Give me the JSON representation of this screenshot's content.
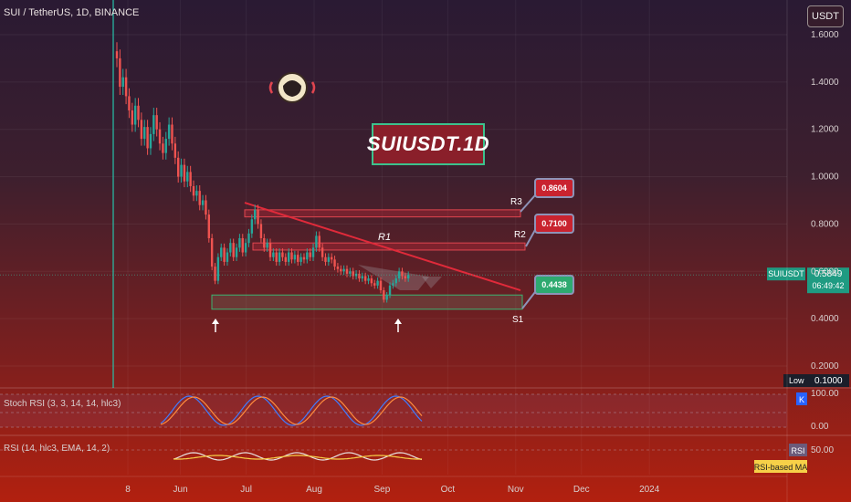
{
  "header": {
    "symbol_line": "SUI / TetherUS, 1D, BINANCE",
    "currency": "USDT"
  },
  "title_box": "SUIUSDT.1D",
  "price_axis": {
    "ticks": [
      "1.6000",
      "1.4000",
      "1.2000",
      "1.0000",
      "0.8000",
      "0.6000",
      "0.4000",
      "0.2000"
    ]
  },
  "time_axis": {
    "ticks": [
      "8",
      "Jun",
      "Jul",
      "Aug",
      "Sep",
      "Oct",
      "Nov",
      "Dec",
      "2024"
    ]
  },
  "price_badge": {
    "symbol": "SUIUSDT",
    "price": "0.5849",
    "countdown": "06:49:42"
  },
  "low_badge": {
    "label": "Low",
    "value": "0.1000"
  },
  "levels": [
    {
      "name": "R3",
      "value": "0.8604",
      "color": "#d62b38"
    },
    {
      "name": "R2",
      "value": "0.7100",
      "color": "#d62b38"
    },
    {
      "name": "R1",
      "value": "",
      "color": "#d62b38"
    },
    {
      "name": "S1",
      "value": "0.4438",
      "color": "#3cb371"
    }
  ],
  "stoch_rsi": {
    "title": "Stoch RSI (3, 3, 14, 14, hlc3)",
    "tick_top": "100.00",
    "tick_bottom": "0.00",
    "badge": "K"
  },
  "rsi": {
    "title": "RSI (14, hlc3, EMA, 14, 2)",
    "tick": "50.00",
    "badge": "RSI",
    "ma_label": "RSI-based MA"
  },
  "chart_data": {
    "type": "candlestick",
    "title": "SUIUSDT.1D",
    "ylim": [
      0.1,
      1.6
    ],
    "yscale": "linear",
    "grid": true,
    "close_series": {
      "start": "2023-05-03",
      "interval_days": 1,
      "values": [
        1.5,
        1.38,
        1.42,
        1.34,
        1.28,
        1.22,
        1.3,
        1.24,
        1.16,
        1.21,
        1.12,
        1.18,
        1.26,
        1.2,
        1.14,
        1.1,
        1.16,
        1.22,
        1.14,
        1.08,
        1.0,
        1.05,
        0.98,
        1.02,
        0.96,
        0.92,
        0.94,
        0.88,
        0.9,
        0.84,
        0.74,
        0.62,
        0.56,
        0.66,
        0.7,
        0.64,
        0.68,
        0.72,
        0.66,
        0.7,
        0.74,
        0.68,
        0.72,
        0.76,
        0.82,
        0.86,
        0.8,
        0.74,
        0.7,
        0.72,
        0.66,
        0.68,
        0.64,
        0.68,
        0.66,
        0.64,
        0.68,
        0.65,
        0.67,
        0.64,
        0.66,
        0.65,
        0.68,
        0.66,
        0.7,
        0.75,
        0.7,
        0.66,
        0.64,
        0.66,
        0.65,
        0.62,
        0.61,
        0.6,
        0.61,
        0.59,
        0.6,
        0.58,
        0.59,
        0.57,
        0.58,
        0.56,
        0.57,
        0.55,
        0.54,
        0.56,
        0.52,
        0.48,
        0.5,
        0.54,
        0.55,
        0.57,
        0.6,
        0.58,
        0.57,
        0.5849
      ]
    },
    "levels": {
      "R3_zone": [
        0.83,
        0.86
      ],
      "R2_zone": [
        0.69,
        0.72
      ],
      "S1_zone": [
        0.44,
        0.5
      ],
      "R1_trendline": {
        "from": [
          "2023-06-20",
          0.89
        ],
        "to": [
          "2023-09-29",
          0.52
        ]
      }
    },
    "last_price": 0.5849,
    "low": 0.1
  }
}
